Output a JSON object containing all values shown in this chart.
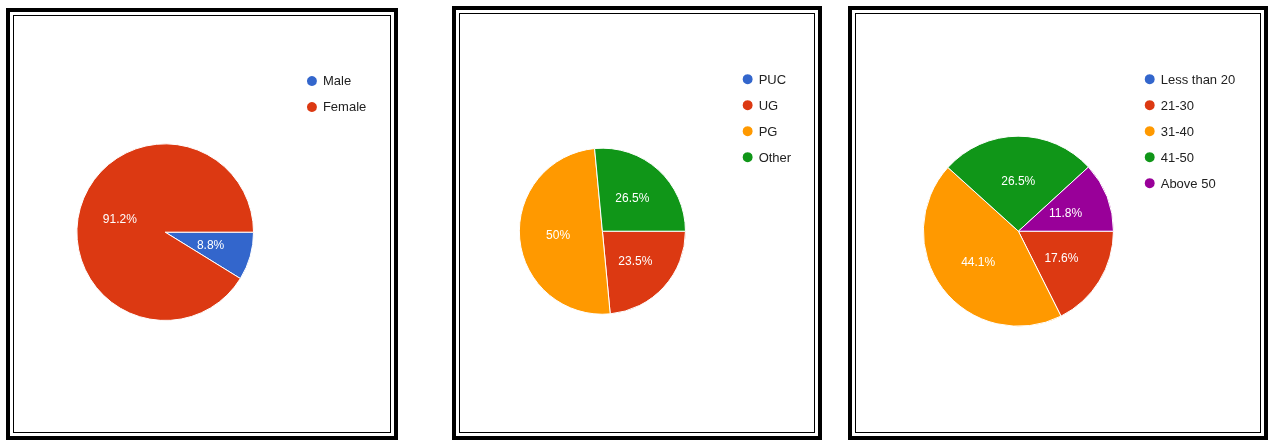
{
  "chart_data": [
    {
      "type": "pie",
      "categories": [
        "Male",
        "Female"
      ],
      "values": [
        8.8,
        91.2
      ],
      "value_labels": [
        "8.8%",
        "91.2%"
      ],
      "colors": [
        "#3366cc",
        "#dc3912"
      ],
      "legend": "top right"
    },
    {
      "type": "pie",
      "categories": [
        "PUC",
        "UG",
        "PG",
        "Other"
      ],
      "values": [
        0,
        23.5,
        50,
        26.5
      ],
      "value_labels": [
        null,
        "23.5%",
        "50%",
        "26.5%"
      ],
      "colors": [
        "#3366cc",
        "#dc3912",
        "#ff9900",
        "#109618"
      ],
      "legend": "top right"
    },
    {
      "type": "pie",
      "categories": [
        "Less than 20",
        "21-30",
        "31-40",
        "41-50",
        "Above 50"
      ],
      "values": [
        0,
        17.6,
        44.1,
        26.5,
        11.8
      ],
      "value_labels": [
        null,
        "17.6%",
        "44.1%",
        "26.5%",
        "11.8%"
      ],
      "colors": [
        "#3366cc",
        "#dc3912",
        "#ff9900",
        "#109618",
        "#990099"
      ],
      "legend": "top right"
    }
  ]
}
